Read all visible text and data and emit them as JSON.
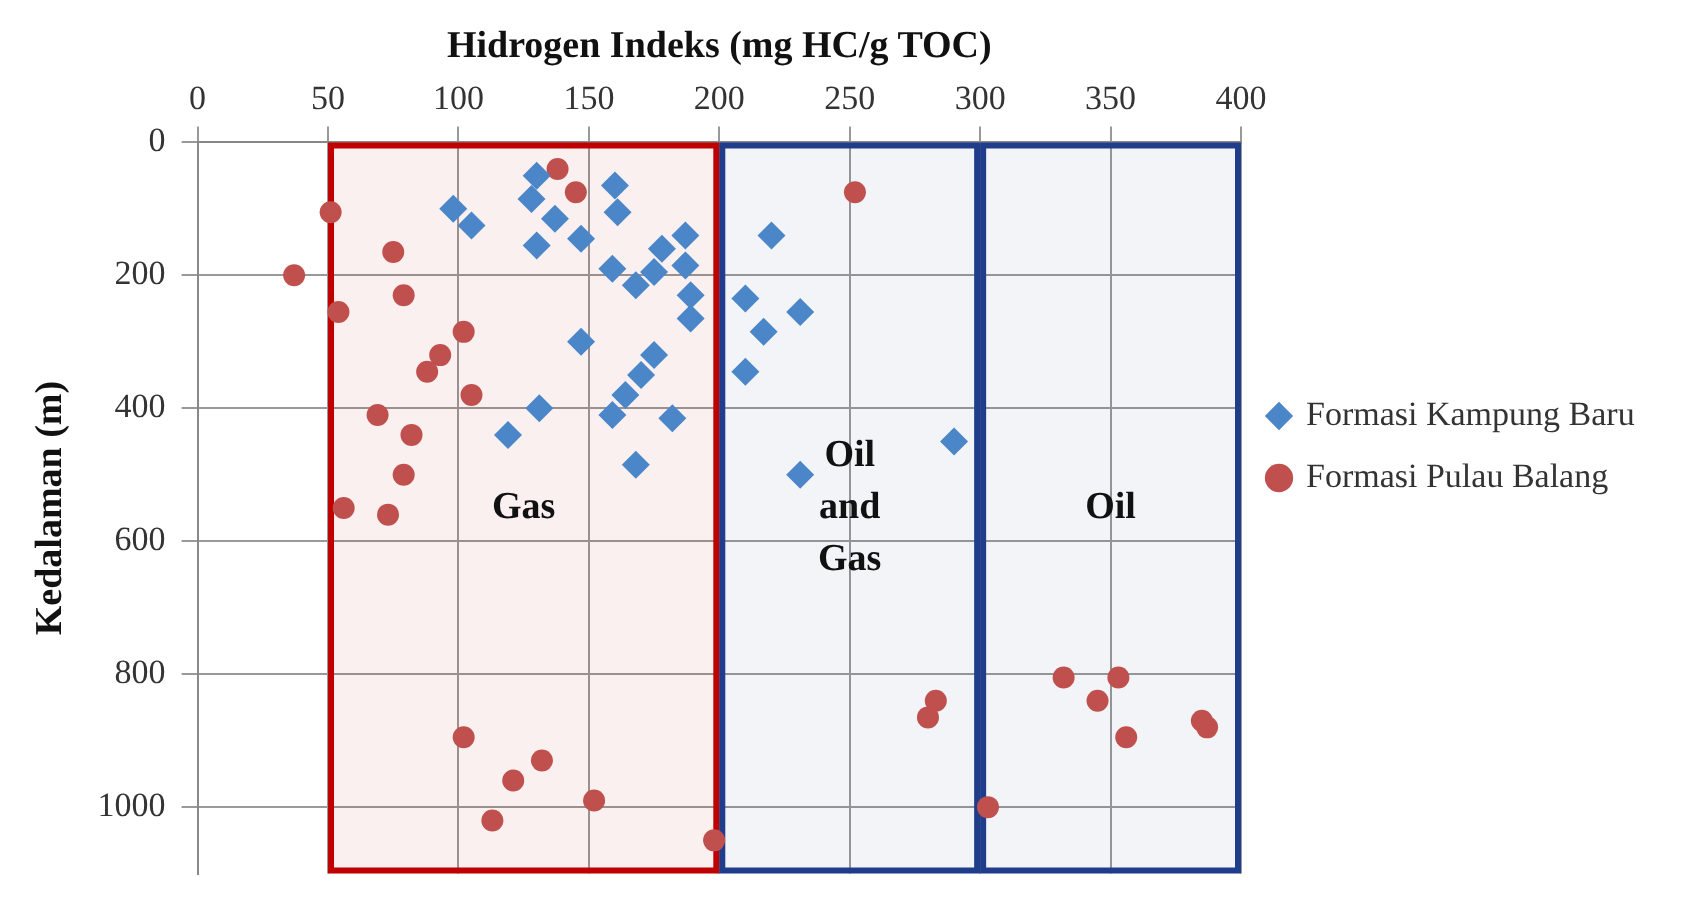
{
  "chart_data": {
    "type": "scatter",
    "xlabel": "Hidrogen Indeks (mg HC/g TOC)",
    "ylabel": "Kedalaman (m)",
    "xlim": [
      0,
      400
    ],
    "xticks": [
      0,
      50,
      100,
      150,
      200,
      250,
      300,
      350,
      400
    ],
    "ylim": [
      1100,
      0
    ],
    "yticks": [
      0,
      200,
      400,
      600,
      800,
      1000
    ],
    "grid": true,
    "legend": "right",
    "bands": [
      {
        "axis": "x",
        "from": 50,
        "to": 200,
        "label": "Gas",
        "color": "#c00000"
      },
      {
        "axis": "x",
        "from": 200,
        "to": 300,
        "label": "Oil\nand\nGas",
        "color": "#1f3d8a"
      },
      {
        "axis": "x",
        "from": 300,
        "to": 400,
        "label": "Oil",
        "color": "#1f3d8a"
      }
    ],
    "series": [
      {
        "name": "Formasi Kampung Baru",
        "color": "#4a86c8",
        "marker": "diamond",
        "x": [
          98,
          105,
          130,
          128,
          137,
          130,
          147,
          160,
          161,
          159,
          168,
          178,
          187,
          187,
          189,
          189,
          175,
          220,
          210,
          231,
          217,
          210,
          147,
          175,
          170,
          164,
          159,
          182,
          131,
          119,
          168,
          231,
          290
        ],
        "values": [
          100,
          125,
          50,
          85,
          115,
          155,
          145,
          65,
          105,
          190,
          215,
          160,
          140,
          185,
          230,
          265,
          195,
          140,
          235,
          255,
          285,
          345,
          300,
          320,
          350,
          380,
          410,
          415,
          400,
          440,
          485,
          500,
          450
        ]
      },
      {
        "name": "Formasi Pulau Balang",
        "color": "#c0504d",
        "marker": "circle",
        "x": [
          51,
          37,
          75,
          79,
          54,
          102,
          93,
          88,
          105,
          69,
          82,
          79,
          56,
          73,
          138,
          145,
          252,
          102,
          132,
          121,
          152,
          113,
          198,
          283,
          280,
          303,
          332,
          353,
          345,
          356,
          385,
          387
        ],
        "values": [
          105,
          200,
          165,
          230,
          255,
          285,
          320,
          345,
          380,
          410,
          440,
          500,
          550,
          560,
          40,
          75,
          75,
          895,
          930,
          960,
          990,
          1020,
          1050,
          840,
          865,
          1000,
          805,
          805,
          840,
          895,
          870,
          880
        ]
      }
    ]
  }
}
